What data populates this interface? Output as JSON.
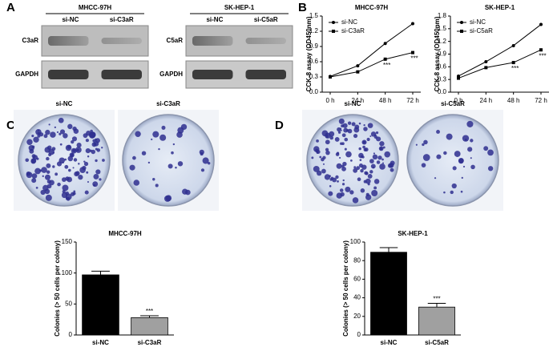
{
  "panel_labels": [
    "A",
    "B",
    "C",
    "D"
  ],
  "blots": [
    {
      "cell_line": "MHCC-97H",
      "lanes": [
        "si-NC",
        "si-C3aR"
      ],
      "proteins": [
        "C3aR",
        "GAPDH"
      ]
    },
    {
      "cell_line": "SK-HEP-1",
      "lanes": [
        "si-NC",
        "si-C5aR"
      ],
      "proteins": [
        "C5aR",
        "GAPDH"
      ]
    }
  ],
  "plates": [
    {
      "lanes": [
        "si-NC",
        "si-C3aR"
      ]
    },
    {
      "lanes": [
        "si-NC",
        "si-C5aR"
      ]
    }
  ],
  "chart_data": [
    {
      "type": "line",
      "title": "MHCC-97H",
      "y_label": "CCK-8 assay (OD450nm)",
      "categories": [
        "0 h",
        "24 h",
        "48 h",
        "72 h"
      ],
      "series": [
        {
          "name": "si-NC",
          "color": "#000000",
          "values": [
            0.31,
            0.52,
            0.96,
            1.35
          ]
        },
        {
          "name": "si-C3aR",
          "color": "#000000",
          "values": [
            0.3,
            0.4,
            0.65,
            0.78
          ],
          "significance": [
            null,
            null,
            "***",
            "***"
          ]
        }
      ],
      "ylim": [
        0,
        1.5
      ],
      "yticks": [
        {
          "value": 0,
          "label": "0.0"
        },
        0.3,
        0.6,
        0.9,
        1.2,
        1.5
      ],
      "legend": "top-left"
    },
    {
      "type": "line",
      "title": "SK-HEP-1",
      "y_label": "CCK-8 assay (OD450nm)",
      "categories": [
        "0 h",
        "24 h",
        "48 h",
        "72 h"
      ],
      "series": [
        {
          "name": "si-NC",
          "color": "#000000",
          "values": [
            0.38,
            0.72,
            1.1,
            1.6
          ]
        },
        {
          "name": "si-C5aR",
          "color": "#000000",
          "values": [
            0.33,
            0.58,
            0.7,
            1.0
          ],
          "significance": [
            null,
            null,
            "***",
            "***"
          ]
        }
      ],
      "ylim": [
        0,
        1.8
      ],
      "yticks": [
        {
          "value": 0,
          "label": "0.0"
        },
        0.3,
        0.6,
        0.9,
        1.2,
        1.5,
        1.8
      ],
      "legend": "top-left"
    },
    {
      "type": "bar",
      "title": "MHCC-97H",
      "y_label": "Colonies (> 50 cells per colony)",
      "categories": [
        "si-NC",
        "si-C3aR"
      ],
      "values": [
        97,
        28
      ],
      "errors": [
        6,
        3
      ],
      "colors": [
        "#000000",
        "#a0a0a0"
      ],
      "significance": [
        null,
        "***"
      ],
      "ylim": [
        0,
        150
      ],
      "yticks": [
        0,
        50,
        100,
        150
      ]
    },
    {
      "type": "bar",
      "title": "SK-HEP-1",
      "y_label": "Colonies (> 50 cells per colony)",
      "categories": [
        "si-NC",
        "si-C5aR"
      ],
      "values": [
        89,
        30
      ],
      "errors": [
        5,
        4
      ],
      "colors": [
        "#000000",
        "#a0a0a0"
      ],
      "significance": [
        null,
        "***"
      ],
      "ylim": [
        0,
        100
      ],
      "yticks": [
        0,
        20,
        40,
        60,
        80,
        100
      ]
    }
  ]
}
